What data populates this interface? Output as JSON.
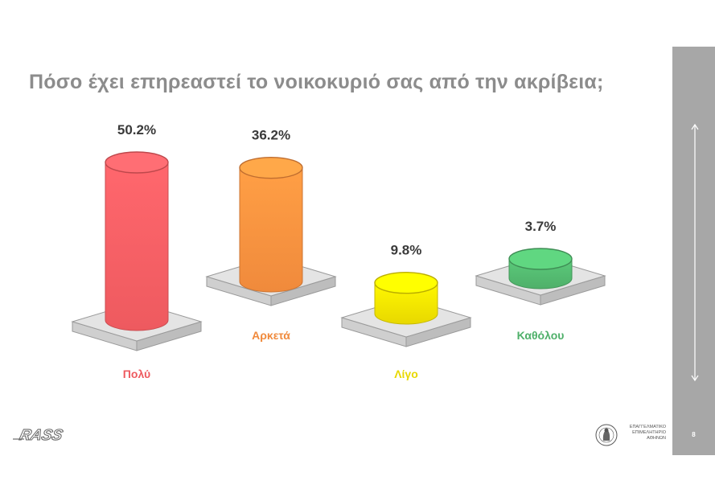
{
  "title": "Πόσο έχει επηρεαστεί το νοικοκυριό σας από την ακρίβεια;",
  "page_number": "8",
  "brand": {
    "logo_text": "RASS",
    "chamber_lines": [
      "ΕΠΑΓΓΕΛΜΑΤΙΚΟ",
      "ΕΠΙΜΕΛΗΤΗΡΙΟ",
      "ΑΘΗΝΩΝ"
    ]
  },
  "colors": {
    "polu": "#ee5a5f",
    "arketa": "#f08a3c",
    "ligo": "#e8d800",
    "katholou": "#4fb06a",
    "sidebar": "#a7a7a7",
    "title": "#8c8c8c"
  },
  "chart_data": {
    "type": "bar",
    "style": "3d-cylinder",
    "title": "Πόσο έχει επηρεαστεί το νοικοκυριό σας από την ακρίβεια;",
    "categories": [
      "Πολύ",
      "Αρκετά",
      "Λίγο",
      "Καθόλου"
    ],
    "values": [
      50.2,
      36.2,
      9.8,
      3.7
    ],
    "value_labels": [
      "50.2%",
      "36.2%",
      "9.8%",
      "3.7%"
    ],
    "unit": "%",
    "ylim": [
      0,
      50.2
    ],
    "grid": false,
    "legend": "none"
  }
}
